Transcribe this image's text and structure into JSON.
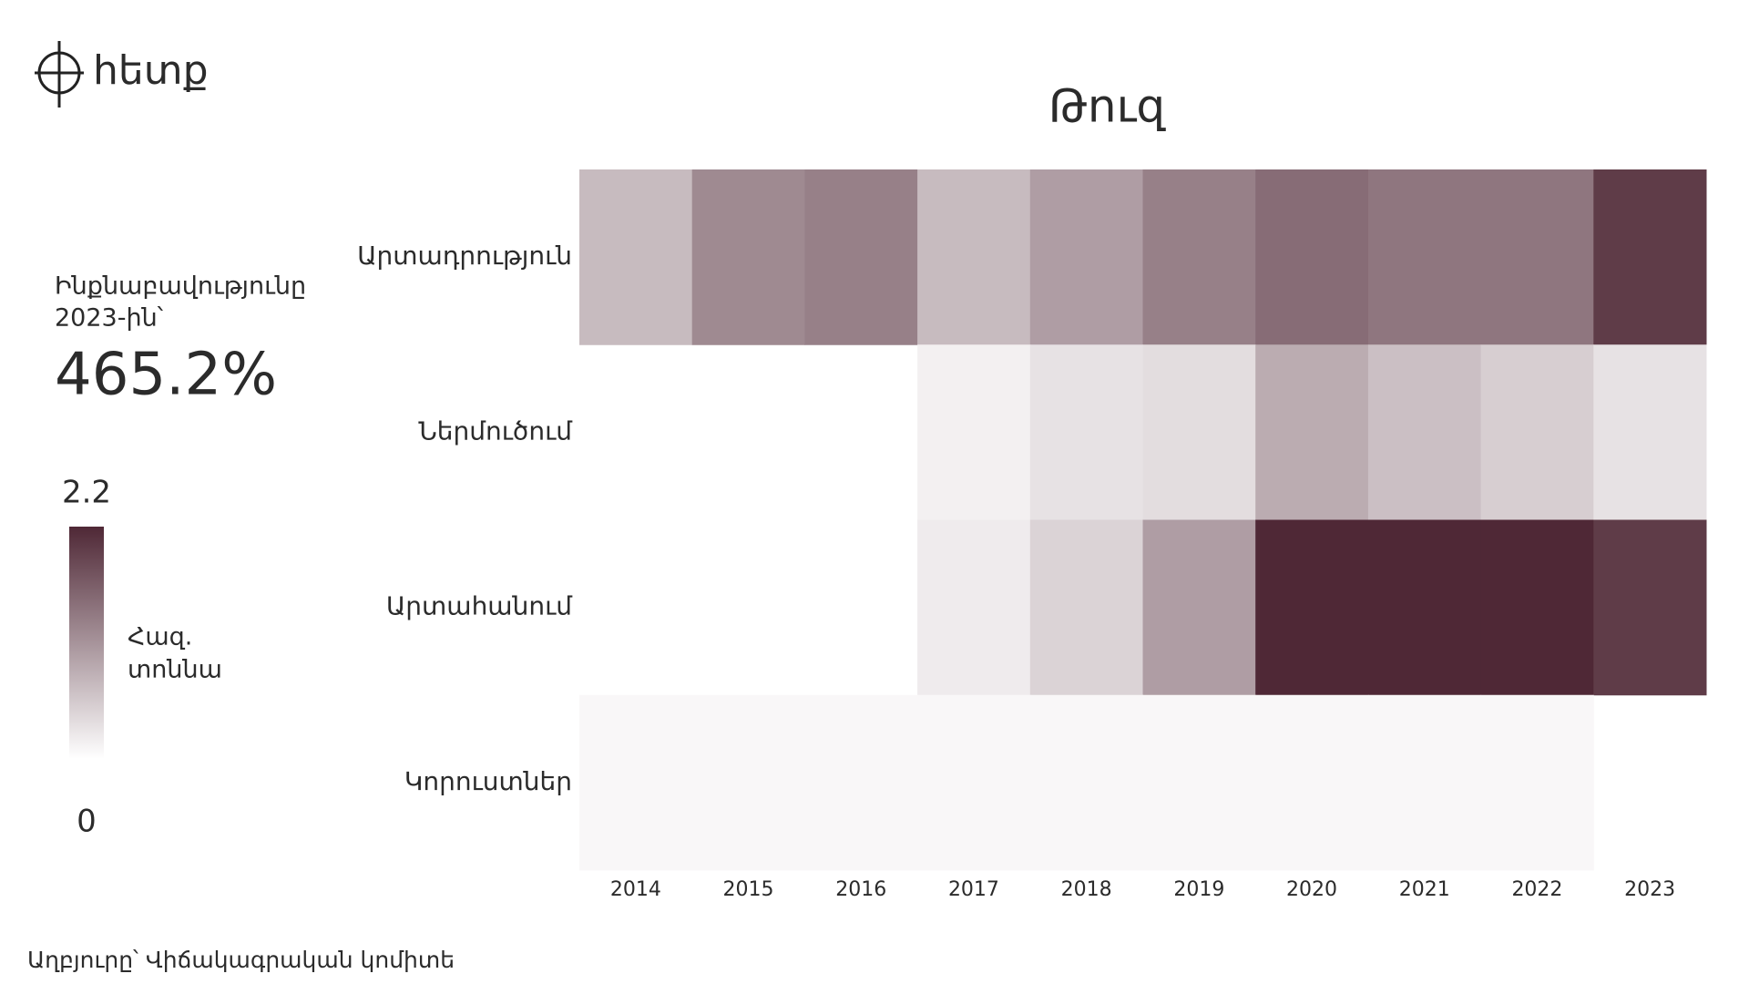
{
  "logo": "հետք",
  "kpi": {
    "label": [
      "Ինքնաբավությունը",
      "2023-ին՝"
    ],
    "value": "465.2%"
  },
  "source": "Աղբյուրը՝ Վիճակագրական կոմիտե",
  "chart_data": {
    "type": "heatmap",
    "title": "Թուզ",
    "rows": [
      "Արտադրություն",
      "Ներմուծում",
      "Արտահանում",
      "Կորուստներ"
    ],
    "categories": [
      "2014",
      "2015",
      "2016",
      "2017",
      "2018",
      "2019",
      "2020",
      "2021",
      "2022",
      "2023"
    ],
    "values": [
      [
        0.7,
        1.2,
        1.3,
        0.7,
        1.0,
        1.3,
        1.5,
        1.4,
        1.4,
        2.0
      ],
      [
        null,
        null,
        null,
        0.15,
        0.3,
        0.35,
        0.85,
        0.65,
        0.5,
        0.3
      ],
      [
        null,
        null,
        null,
        0.2,
        0.45,
        1.0,
        2.2,
        2.2,
        2.2,
        2.0
      ],
      [
        0.08,
        0.08,
        0.08,
        0.08,
        0.08,
        0.08,
        0.08,
        0.08,
        0.08,
        null
      ]
    ],
    "colorscale": [
      "#ffffff",
      "#4f2836"
    ],
    "colorlim": [
      0,
      2.2
    ],
    "colorticks": [
      0,
      2.2
    ],
    "colorbar_label": [
      "Հազ.",
      "տոննա"
    ]
  }
}
